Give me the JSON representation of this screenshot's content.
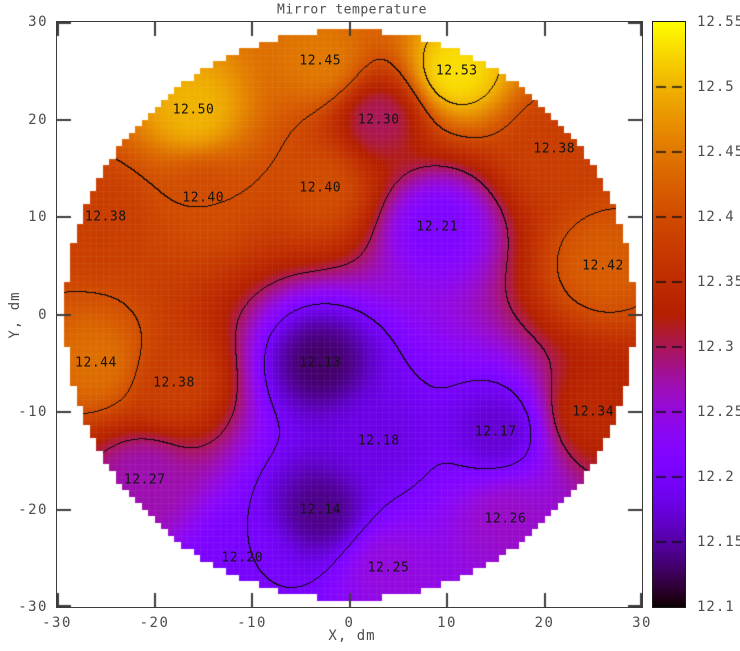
{
  "title": "Mirror temperature",
  "axes": {
    "x_label": "X, dm",
    "y_label": "Y, dm",
    "x_ticks": [
      -30,
      -20,
      -10,
      0,
      10,
      20,
      30
    ],
    "y_ticks": [
      30,
      20,
      10,
      0,
      -10,
      -20,
      -30
    ]
  },
  "colorbar": {
    "min": 12.1,
    "max": 12.55,
    "tick_labels": [
      "12.55",
      "12.5",
      "12.45",
      "12.4",
      "12.35",
      "12.3",
      "12.25",
      "12.2",
      "12.15",
      "12.1"
    ],
    "palette_name": "gnuplot-pm3d black-purple-violet-crimson-orange-yellow"
  },
  "chart_data": {
    "type": "heatmap",
    "title": "Mirror temperature",
    "xlabel": "X, dm",
    "ylabel": "Y, dm",
    "xlim": [
      -30,
      30
    ],
    "ylim": [
      -30,
      30
    ],
    "zlim": [
      12.1,
      12.55
    ],
    "mirror_radius_dm": 29.2,
    "contour_levels": [
      12.2,
      12.3,
      12.4,
      12.5
    ],
    "grid": "faint mesh, stair-stepped circular mask",
    "points": [
      {
        "x": -3,
        "y": 26,
        "t": 12.45
      },
      {
        "x": 11,
        "y": 25,
        "t": 12.53
      },
      {
        "x": -16,
        "y": 21,
        "t": 12.5
      },
      {
        "x": 3,
        "y": 20,
        "t": 12.3
      },
      {
        "x": 21,
        "y": 17,
        "t": 12.38
      },
      {
        "x": -15,
        "y": 12,
        "t": 12.4
      },
      {
        "x": -3,
        "y": 13,
        "t": 12.4
      },
      {
        "x": -25,
        "y": 10,
        "t": 12.38
      },
      {
        "x": 9,
        "y": 9,
        "t": 12.21
      },
      {
        "x": 26,
        "y": 5,
        "t": 12.42
      },
      {
        "x": -26,
        "y": -5,
        "t": 12.44
      },
      {
        "x": -18,
        "y": -7,
        "t": 12.38
      },
      {
        "x": -3,
        "y": -5,
        "t": 12.13
      },
      {
        "x": 3,
        "y": -13,
        "t": 12.18
      },
      {
        "x": 15,
        "y": -12,
        "t": 12.17
      },
      {
        "x": 25,
        "y": -10,
        "t": 12.34
      },
      {
        "x": -21,
        "y": -17,
        "t": 12.27
      },
      {
        "x": -3,
        "y": -20,
        "t": 12.14
      },
      {
        "x": 16,
        "y": -21,
        "t": 12.26
      },
      {
        "x": -11,
        "y": -25,
        "t": 12.2
      },
      {
        "x": 4,
        "y": -26,
        "t": 12.25
      }
    ]
  }
}
